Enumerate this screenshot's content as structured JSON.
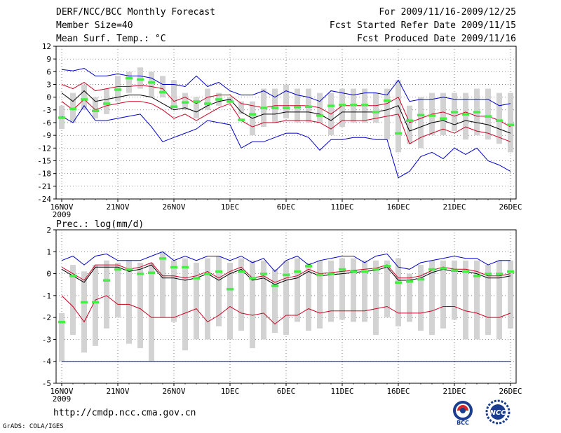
{
  "header": {
    "title": "DERF/NCC/BCC Monthly Forecast",
    "member_size": "Member Size=40",
    "variable": "Mean Surf. Temp.: °C",
    "period": "For 2009/11/16-2009/12/25",
    "refer_date": "Fcst Started Refer Date 2009/11/15",
    "produced_date": "Fcst Produced Date 2009/11/16"
  },
  "footer": {
    "url": "http://cmdp.ncc.cma.gov.cn",
    "grads": "GrADS: COLA/IGES",
    "logo1_text": "BCC",
    "logo2_text": "NCC"
  },
  "colors": {
    "box": "#d3d3d3",
    "median": "#44ee44",
    "mean": "#000000",
    "spread": "#cc0022",
    "extreme": "#0000cc",
    "grid": "#555555"
  },
  "chart_data": [
    {
      "type": "box-ensemble",
      "title": "Mean Surf. Temp.: °C",
      "ylabel": "°C",
      "ylim": [
        -24,
        12
      ],
      "yticks": [
        12,
        9,
        6,
        3,
        0,
        -3,
        -6,
        -9,
        -12,
        -15,
        -18,
        -21,
        -24
      ],
      "xlim": [
        0,
        40
      ],
      "x_ticks": [
        {
          "day": 1,
          "label": "16NOV",
          "sub": "2009"
        },
        {
          "day": 6,
          "label": "21NOV"
        },
        {
          "day": 11,
          "label": "26NOV"
        },
        {
          "day": 16,
          "label": "1DEC"
        },
        {
          "day": 21,
          "label": "6DEC"
        },
        {
          "day": 26,
          "label": "11DEC"
        },
        {
          "day": 31,
          "label": "16DEC"
        },
        {
          "day": 36,
          "label": "21DEC"
        },
        {
          "day": 41,
          "label": "26DEC"
        }
      ],
      "box_low": [
        -7.5,
        -6,
        -3,
        -5,
        -4,
        -1,
        1,
        2,
        0,
        0,
        -2,
        -3,
        -5,
        -3,
        -2,
        -1,
        -4,
        -9,
        -7,
        -6,
        -5,
        -6,
        -6,
        -6,
        -9,
        -7,
        -6,
        -6,
        -6,
        -10,
        -13,
        -11,
        -12,
        -9,
        -9,
        -8,
        -10,
        -9,
        -10,
        -11,
        -13
      ],
      "box_high": [
        -2,
        1,
        3,
        0,
        2,
        5,
        6,
        7,
        6,
        5,
        4,
        1,
        0,
        2,
        1,
        0,
        -1,
        -1,
        2,
        2,
        3,
        2,
        2,
        1,
        1,
        2,
        2,
        2,
        1,
        2,
        4,
        -2,
        0,
        1,
        1,
        1,
        1,
        2,
        2,
        1,
        1
      ],
      "median": [
        -4.8,
        -2.7,
        -0.5,
        -3.2,
        -1.5,
        1.8,
        4.5,
        4.2,
        3.5,
        1.2,
        -2.2,
        -1.2,
        -1.0,
        -1.5,
        -0.5,
        -1.0,
        -5.3,
        -4.0,
        -2.5,
        -2.5,
        -2.5,
        -2.3,
        -2.2,
        -4.3,
        -2.0,
        -1.8,
        -1.8,
        -1.8,
        -3.5,
        -0.8,
        -8.5,
        -5.5,
        -4.2,
        -4.3,
        -5.0,
        -3.5,
        -4.0,
        -3.5,
        -4.5,
        -5.5,
        -6.5
      ],
      "mean": [
        1.0,
        -1.0,
        1.5,
        -1.0,
        -0.5,
        0.0,
        0.5,
        0.5,
        0.0,
        -1.5,
        -3.0,
        -2.5,
        -3.5,
        -2.0,
        -1.0,
        -0.5,
        -3.5,
        -5.0,
        -4.0,
        -4.0,
        -3.5,
        -3.5,
        -3.5,
        -4.0,
        -5.5,
        -3.5,
        -3.5,
        -3.5,
        -3.5,
        -3.0,
        -2.0,
        -8.0,
        -7.0,
        -6.0,
        -5.5,
        -6.5,
        -5.5,
        -6.0,
        -6.5,
        -7.5,
        -8.5
      ],
      "upper": [
        3.0,
        2.0,
        3.5,
        1.5,
        2.0,
        2.5,
        2.5,
        2.8,
        2.5,
        2.0,
        -1.0,
        0.0,
        -1.5,
        0.0,
        0.5,
        0.5,
        -1.5,
        -2.0,
        -2.5,
        -2.0,
        -2.0,
        -2.0,
        -2.0,
        -2.5,
        -4.0,
        -2.0,
        -2.0,
        -2.0,
        -2.0,
        -1.5,
        0.0,
        -6.0,
        -5.0,
        -4.0,
        -3.5,
        -4.5,
        -3.5,
        -4.5,
        -4.5,
        -5.5,
        -7.0
      ],
      "lower": [
        -1.0,
        -3.0,
        -0.5,
        -3.0,
        -2.0,
        -1.5,
        -1.0,
        -1.0,
        -1.5,
        -3.0,
        -5.0,
        -4.0,
        -5.5,
        -4.0,
        -2.5,
        -1.5,
        -5.5,
        -7.0,
        -6.0,
        -6.0,
        -5.5,
        -5.5,
        -5.5,
        -6.0,
        -7.5,
        -5.5,
        -5.5,
        -5.5,
        -5.0,
        -4.5,
        -4.0,
        -11.0,
        -9.5,
        -8.5,
        -7.5,
        -8.5,
        -7.0,
        -8.0,
        -8.5,
        -9.5,
        -10.5
      ],
      "max": [
        6.5,
        6.2,
        6.8,
        5.0,
        5.0,
        5.5,
        5.0,
        5.0,
        4.5,
        3.0,
        3.0,
        2.5,
        5.0,
        2.5,
        3.5,
        1.5,
        0.5,
        0.5,
        1.5,
        0.0,
        1.5,
        0.5,
        0.0,
        -1.0,
        1.5,
        1.0,
        0.5,
        1.0,
        1.0,
        0.5,
        4.0,
        -1.0,
        -0.5,
        -0.5,
        0.0,
        -0.5,
        -0.5,
        -0.5,
        -0.5,
        -2.0,
        -1.5
      ],
      "min": [
        -4.5,
        -6.0,
        -2.0,
        -5.5,
        -5.5,
        -5.0,
        -4.5,
        -4.0,
        -7.0,
        -10.5,
        -9.5,
        -8.5,
        -7.5,
        -5.5,
        -6.0,
        -6.5,
        -12.0,
        -10.5,
        -10.5,
        -9.5,
        -8.5,
        -8.5,
        -9.5,
        -12.5,
        -10.0,
        -10.0,
        -9.5,
        -9.5,
        -10.0,
        -10.0,
        -19.0,
        -17.5,
        -14.0,
        -13.0,
        -14.5,
        -12.0,
        -13.5,
        -12.0,
        -15.0,
        -16.0,
        -17.5
      ]
    },
    {
      "type": "box-ensemble",
      "title": "Prec.: log(mm/d)",
      "ylabel": "log(mm/d)",
      "ylim": [
        -5,
        2
      ],
      "yticks": [
        2,
        1,
        0,
        -1,
        -2,
        -3,
        -4,
        -5
      ],
      "xlim": [
        0,
        40
      ],
      "x_ticks": [
        {
          "day": 1,
          "label": "16NOV",
          "sub": "2009"
        },
        {
          "day": 6,
          "label": "21NOV"
        },
        {
          "day": 11,
          "label": "26NOV"
        },
        {
          "day": 16,
          "label": "1DEC"
        },
        {
          "day": 21,
          "label": "6DEC"
        },
        {
          "day": 26,
          "label": "11DEC"
        },
        {
          "day": 31,
          "label": "16DEC"
        },
        {
          "day": 36,
          "label": "21DEC"
        },
        {
          "day": 41,
          "label": "26DEC"
        }
      ],
      "box_low": [
        -4.0,
        -2.8,
        -3.6,
        -3.3,
        -2.5,
        -2.0,
        -3.2,
        -3.4,
        -4.0,
        -2.0,
        -2.2,
        -3.5,
        -3.0,
        -3.0,
        -2.4,
        -3.0,
        -2.6,
        -3.4,
        -3.0,
        -2.7,
        -2.8,
        -2.2,
        -2.6,
        -2.5,
        -2.2,
        -2.1,
        -2.2,
        -2.2,
        -2.8,
        -2.0,
        -2.4,
        -2.2,
        -2.6,
        -2.8,
        -2.5,
        -2.1,
        -3.0,
        -3.0,
        -2.8,
        -3.0,
        -2.5
      ],
      "box_high": [
        -1.8,
        0.4,
        0.1,
        0.4,
        0.6,
        0.5,
        0.6,
        0.5,
        0.5,
        1.0,
        0.6,
        0.7,
        0.5,
        0.7,
        0.8,
        0.5,
        0.7,
        0.6,
        0.6,
        0.2,
        0.6,
        0.7,
        0.5,
        0.6,
        0.6,
        0.7,
        0.7,
        0.6,
        0.6,
        0.6,
        0.7,
        0.0,
        0.4,
        0.6,
        0.6,
        0.6,
        0.6,
        0.6,
        0.4,
        0.6,
        0.6
      ],
      "median": [
        -2.2,
        -0.1,
        -1.3,
        -1.3,
        -0.3,
        0.2,
        0.2,
        0.0,
        0.05,
        0.7,
        0.3,
        0.3,
        -0.2,
        0.0,
        0.1,
        -0.7,
        0.1,
        -0.2,
        0.0,
        -0.55,
        -0.05,
        0.1,
        0.35,
        -0.05,
        0.0,
        0.2,
        0.1,
        0.1,
        0.2,
        0.35,
        -0.4,
        -0.35,
        -0.25,
        0.2,
        0.25,
        0.15,
        0.1,
        -0.1,
        0.0,
        0.0,
        0.1
      ],
      "mean": [
        0.2,
        -0.1,
        -0.4,
        0.3,
        0.3,
        0.3,
        0.1,
        0.2,
        0.4,
        -0.2,
        -0.2,
        -0.3,
        -0.2,
        0.0,
        -0.3,
        0.0,
        0.2,
        -0.3,
        -0.2,
        -0.5,
        -0.3,
        -0.2,
        0.1,
        -0.1,
        -0.05,
        0.0,
        0.05,
        0.1,
        0.15,
        0.3,
        -0.3,
        -0.3,
        -0.2,
        0.05,
        0.2,
        0.1,
        0.1,
        0.0,
        -0.2,
        -0.2,
        -0.1
      ],
      "upper": [
        0.3,
        0.0,
        -0.3,
        0.4,
        0.4,
        0.4,
        0.2,
        0.3,
        0.5,
        -0.1,
        -0.1,
        -0.2,
        -0.1,
        0.1,
        -0.2,
        0.1,
        0.3,
        -0.2,
        -0.1,
        -0.4,
        -0.2,
        -0.1,
        0.2,
        0.0,
        0.05,
        0.1,
        0.15,
        0.2,
        0.25,
        0.4,
        -0.2,
        -0.2,
        -0.1,
        0.15,
        0.3,
        0.2,
        0.2,
        0.1,
        -0.1,
        -0.1,
        0.0
      ],
      "lower": [
        -1.0,
        -1.5,
        -2.2,
        -1.2,
        -1.0,
        -1.4,
        -1.4,
        -1.6,
        -2.0,
        -2.0,
        -2.0,
        -1.8,
        -1.6,
        -2.2,
        -1.9,
        -1.5,
        -1.8,
        -1.9,
        -1.8,
        -2.3,
        -1.9,
        -1.9,
        -1.6,
        -1.8,
        -1.7,
        -1.7,
        -1.7,
        -1.7,
        -1.6,
        -1.5,
        -1.8,
        -1.8,
        -1.8,
        -1.7,
        -1.5,
        -1.5,
        -1.7,
        -1.8,
        -2.0,
        -2.0,
        -1.8
      ],
      "max": [
        0.6,
        0.8,
        0.4,
        0.8,
        0.9,
        0.6,
        0.6,
        0.6,
        0.8,
        1.0,
        0.6,
        0.8,
        0.6,
        0.8,
        0.8,
        0.6,
        0.8,
        0.5,
        0.7,
        0.1,
        0.6,
        0.8,
        0.4,
        0.6,
        0.7,
        0.8,
        0.8,
        0.5,
        0.8,
        0.9,
        0.3,
        0.2,
        0.5,
        0.6,
        0.7,
        0.8,
        0.7,
        0.7,
        0.4,
        0.6,
        0.6
      ],
      "min": [
        -4.0,
        -4.0,
        -4.0,
        -4.0,
        -4.0,
        -4.0,
        -4.0,
        -4.0,
        -4.0,
        -4.0,
        -4.0,
        -4.0,
        -4.0,
        -4.0,
        -4.0,
        -4.0,
        -4.0,
        -4.0,
        -4.0,
        -4.0,
        -4.0,
        -4.0,
        -4.0,
        -4.0,
        -4.0,
        -4.0,
        -4.0,
        -4.0,
        -4.0,
        -4.0,
        -4.0,
        -4.0,
        -4.0,
        -4.0,
        -4.0,
        -4.0,
        -4.0,
        -4.0,
        -4.0,
        -4.0,
        -4.0
      ]
    }
  ]
}
